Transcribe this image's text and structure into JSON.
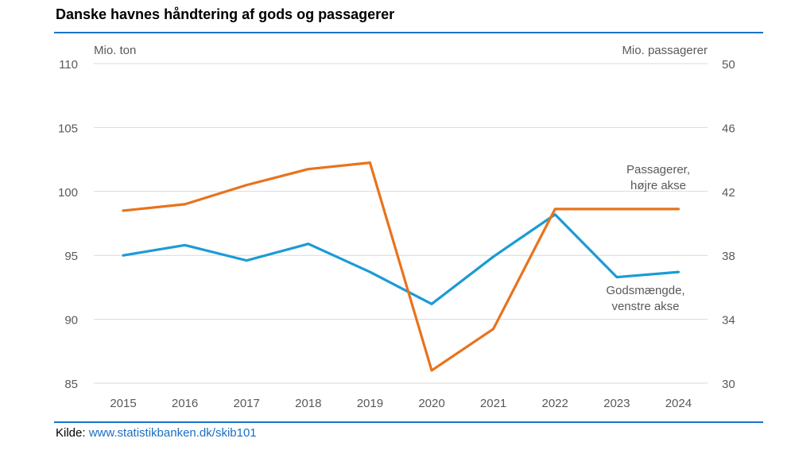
{
  "title": "Danske havnes håndtering af gods og passagerer",
  "source": {
    "label": "Kilde",
    "separator": ": ",
    "link": "www.statistikbanken.dk/skib101"
  },
  "colors": {
    "gods": "#1b9bd6",
    "passagerer": "#e8731c",
    "grid": "#d9d9d9",
    "rule": "#1a73c9",
    "text": "#595959"
  },
  "chart_data": {
    "type": "line",
    "categories": [
      "2015",
      "2016",
      "2017",
      "2018",
      "2019",
      "2020",
      "2021",
      "2022",
      "2023",
      "2024"
    ],
    "y_left": {
      "label": "Mio. ton",
      "lim": [
        85,
        110
      ],
      "ticks": [
        85,
        90,
        95,
        100,
        105,
        110
      ]
    },
    "y_right": {
      "label": "Mio. passagerer",
      "lim": [
        30,
        50
      ],
      "ticks": [
        30,
        34,
        38,
        42,
        46,
        50
      ]
    },
    "grid": true,
    "series": [
      {
        "name": "Godsmængde, venstre akse",
        "axis": "left",
        "color": "#1b9bd6",
        "label_lines": [
          "Godsmængde,",
          "venstre akse"
        ],
        "values": [
          95.0,
          95.8,
          94.6,
          95.9,
          93.7,
          91.2,
          94.9,
          98.2,
          93.3,
          93.7
        ]
      },
      {
        "name": "Passagerer, højre akse",
        "axis": "right",
        "color": "#e8731c",
        "label_lines": [
          "Passagerer,",
          "højre akse"
        ],
        "values": [
          40.8,
          41.2,
          42.4,
          43.4,
          43.8,
          30.8,
          33.4,
          40.9,
          40.9,
          40.9
        ]
      }
    ]
  }
}
